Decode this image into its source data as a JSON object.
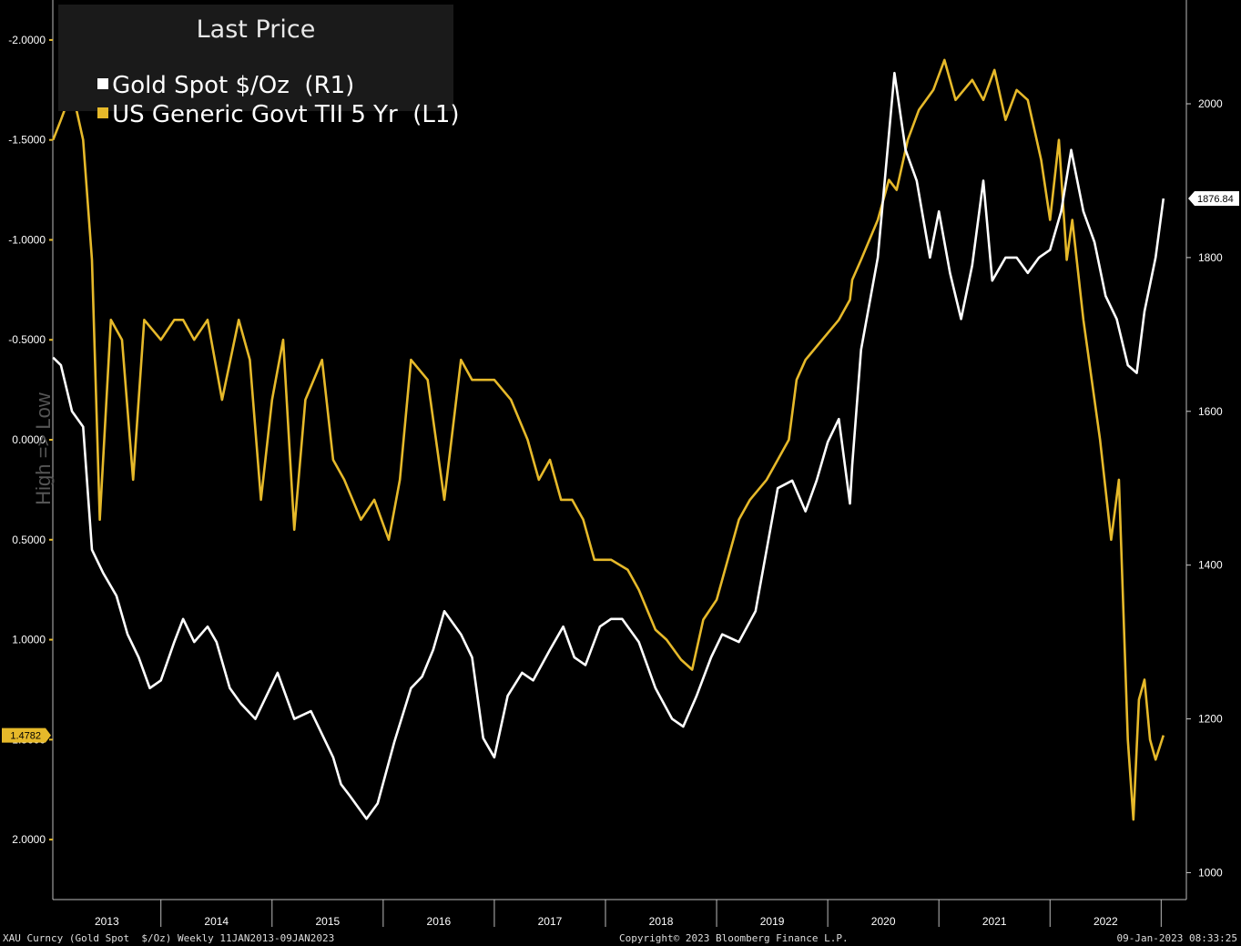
{
  "legend": {
    "title": "Last Price",
    "series_gold": "Gold Spot $/Oz  (R1)",
    "series_tips": "US Generic Govt TII 5 Yr  (L1)"
  },
  "left_axis_title": "High => Low",
  "footer": {
    "left": "XAU Curncy (Gold Spot  $/Oz) Weekly 11JAN2013-09JAN2023",
    "center": "Copyright© 2023 Bloomberg Finance L.P.",
    "right": "09-Jan-2023 08:33:25"
  },
  "colors": {
    "gold_line": "#ffffff",
    "tips_line": "#e6b92a",
    "background": "#000000",
    "legend_bg": "#1a1a1a"
  },
  "chart_data": {
    "type": "line",
    "x_range": [
      "2013-01-11",
      "2023-01-09"
    ],
    "x_tick_labels": [
      "2013",
      "2014",
      "2015",
      "2016",
      "2017",
      "2018",
      "2019",
      "2020",
      "2021",
      "2022"
    ],
    "left_axis": {
      "inverted": true,
      "ticks": [
        "-2.0000",
        "-1.5000",
        "-1.0000",
        "-0.5000",
        "0.0000",
        "0.5000",
        "1.0000",
        "1.5000",
        "2.0000"
      ],
      "ylim": [
        -2.2,
        2.3
      ]
    },
    "right_axis": {
      "ticks": [
        "1000",
        "1200",
        "1400",
        "1600",
        "1800",
        "2000"
      ],
      "ylim": [
        965,
        2135
      ]
    },
    "last_values": {
      "gold": "1876.84",
      "tips": "1.4782"
    },
    "series": [
      {
        "name": "Gold Spot $/Oz (R1)",
        "axis": "right",
        "x": [
          2013.03,
          2013.1,
          2013.2,
          2013.3,
          2013.38,
          2013.48,
          2013.6,
          2013.7,
          2013.8,
          2013.9,
          2014.0,
          2014.12,
          2014.2,
          2014.3,
          2014.42,
          2014.5,
          2014.62,
          2014.72,
          2014.85,
          2014.95,
          2015.05,
          2015.2,
          2015.35,
          2015.45,
          2015.55,
          2015.62,
          2015.7,
          2015.85,
          2015.95,
          2016.1,
          2016.25,
          2016.35,
          2016.45,
          2016.55,
          2016.7,
          2016.8,
          2016.9,
          2017.0,
          2017.12,
          2017.25,
          2017.35,
          2017.5,
          2017.62,
          2017.72,
          2017.82,
          2017.95,
          2018.05,
          2018.15,
          2018.3,
          2018.45,
          2018.6,
          2018.7,
          2018.82,
          2018.95,
          2019.05,
          2019.2,
          2019.35,
          2019.45,
          2019.55,
          2019.68,
          2019.8,
          2019.9,
          2020.0,
          2020.1,
          2020.2,
          2020.22,
          2020.3,
          2020.45,
          2020.55,
          2020.6,
          2020.7,
          2020.8,
          2020.92,
          2021.0,
          2021.1,
          2021.2,
          2021.3,
          2021.4,
          2021.48,
          2021.6,
          2021.7,
          2021.8,
          2021.9,
          2022.0,
          2022.1,
          2022.19,
          2022.3,
          2022.4,
          2022.5,
          2022.6,
          2022.7,
          2022.78,
          2022.85,
          2022.95,
          2023.02
        ],
        "values": [
          1670,
          1660,
          1600,
          1580,
          1420,
          1390,
          1360,
          1310,
          1280,
          1240,
          1250,
          1300,
          1330,
          1300,
          1320,
          1300,
          1240,
          1220,
          1200,
          1230,
          1260,
          1200,
          1210,
          1180,
          1150,
          1115,
          1100,
          1070,
          1090,
          1170,
          1240,
          1255,
          1290,
          1340,
          1310,
          1280,
          1175,
          1150,
          1230,
          1260,
          1250,
          1290,
          1320,
          1280,
          1270,
          1320,
          1330,
          1330,
          1300,
          1240,
          1200,
          1190,
          1230,
          1280,
          1310,
          1300,
          1340,
          1420,
          1500,
          1510,
          1470,
          1510,
          1560,
          1590,
          1480,
          1530,
          1680,
          1800,
          1960,
          2040,
          1940,
          1900,
          1800,
          1860,
          1780,
          1720,
          1790,
          1900,
          1770,
          1800,
          1800,
          1780,
          1800,
          1810,
          1860,
          1940,
          1860,
          1820,
          1750,
          1720,
          1660,
          1650,
          1730,
          1800,
          1876.84
        ]
      },
      {
        "name": "US Generic Govt TII 5 Yr (L1)",
        "axis": "left",
        "x": [
          2013.03,
          2013.1,
          2013.2,
          2013.3,
          2013.38,
          2013.45,
          2013.55,
          2013.65,
          2013.75,
          2013.85,
          2014.0,
          2014.12,
          2014.2,
          2014.3,
          2014.42,
          2014.55,
          2014.7,
          2014.8,
          2014.9,
          2015.0,
          2015.1,
          2015.2,
          2015.3,
          2015.45,
          2015.55,
          2015.65,
          2015.8,
          2015.92,
          2016.05,
          2016.15,
          2016.25,
          2016.4,
          2016.55,
          2016.7,
          2016.8,
          2016.9,
          2017.0,
          2017.15,
          2017.3,
          2017.4,
          2017.5,
          2017.6,
          2017.7,
          2017.8,
          2017.9,
          2018.05,
          2018.2,
          2018.3,
          2018.45,
          2018.55,
          2018.68,
          2018.78,
          2018.88,
          2019.0,
          2019.1,
          2019.2,
          2019.3,
          2019.45,
          2019.55,
          2019.65,
          2019.72,
          2019.8,
          2019.95,
          2020.1,
          2020.2,
          2020.22,
          2020.3,
          2020.45,
          2020.55,
          2020.62,
          2020.72,
          2020.82,
          2020.95,
          2021.05,
          2021.15,
          2021.3,
          2021.4,
          2021.5,
          2021.6,
          2021.7,
          2021.8,
          2021.92,
          2022.0,
          2022.08,
          2022.15,
          2022.2,
          2022.3,
          2022.45,
          2022.55,
          2022.62,
          2022.7,
          2022.75,
          2022.8,
          2022.85,
          2022.9,
          2022.95,
          2023.02
        ],
        "values": [
          -1.5,
          -1.6,
          -1.75,
          -1.5,
          -0.9,
          0.4,
          -0.6,
          -0.5,
          0.2,
          -0.6,
          -0.5,
          -0.6,
          -0.6,
          -0.5,
          -0.6,
          -0.2,
          -0.6,
          -0.4,
          0.3,
          -0.2,
          -0.5,
          0.45,
          -0.2,
          -0.4,
          0.1,
          0.2,
          0.4,
          0.3,
          0.5,
          0.2,
          -0.4,
          -0.3,
          0.3,
          -0.4,
          -0.3,
          -0.3,
          -0.3,
          -0.2,
          0.0,
          0.2,
          0.1,
          0.3,
          0.3,
          0.4,
          0.6,
          0.6,
          0.65,
          0.75,
          0.95,
          1.0,
          1.1,
          1.15,
          0.9,
          0.8,
          0.6,
          0.4,
          0.3,
          0.2,
          0.1,
          0.0,
          -0.3,
          -0.4,
          -0.5,
          -0.6,
          -0.7,
          -0.8,
          -0.9,
          -1.1,
          -1.3,
          -1.25,
          -1.5,
          -1.65,
          -1.75,
          -1.9,
          -1.7,
          -1.8,
          -1.7,
          -1.85,
          -1.6,
          -1.75,
          -1.7,
          -1.4,
          -1.1,
          -1.5,
          -0.9,
          -1.1,
          -0.6,
          0.0,
          0.5,
          0.2,
          1.5,
          1.9,
          1.3,
          1.2,
          1.5,
          1.6,
          1.4782
        ]
      }
    ]
  }
}
